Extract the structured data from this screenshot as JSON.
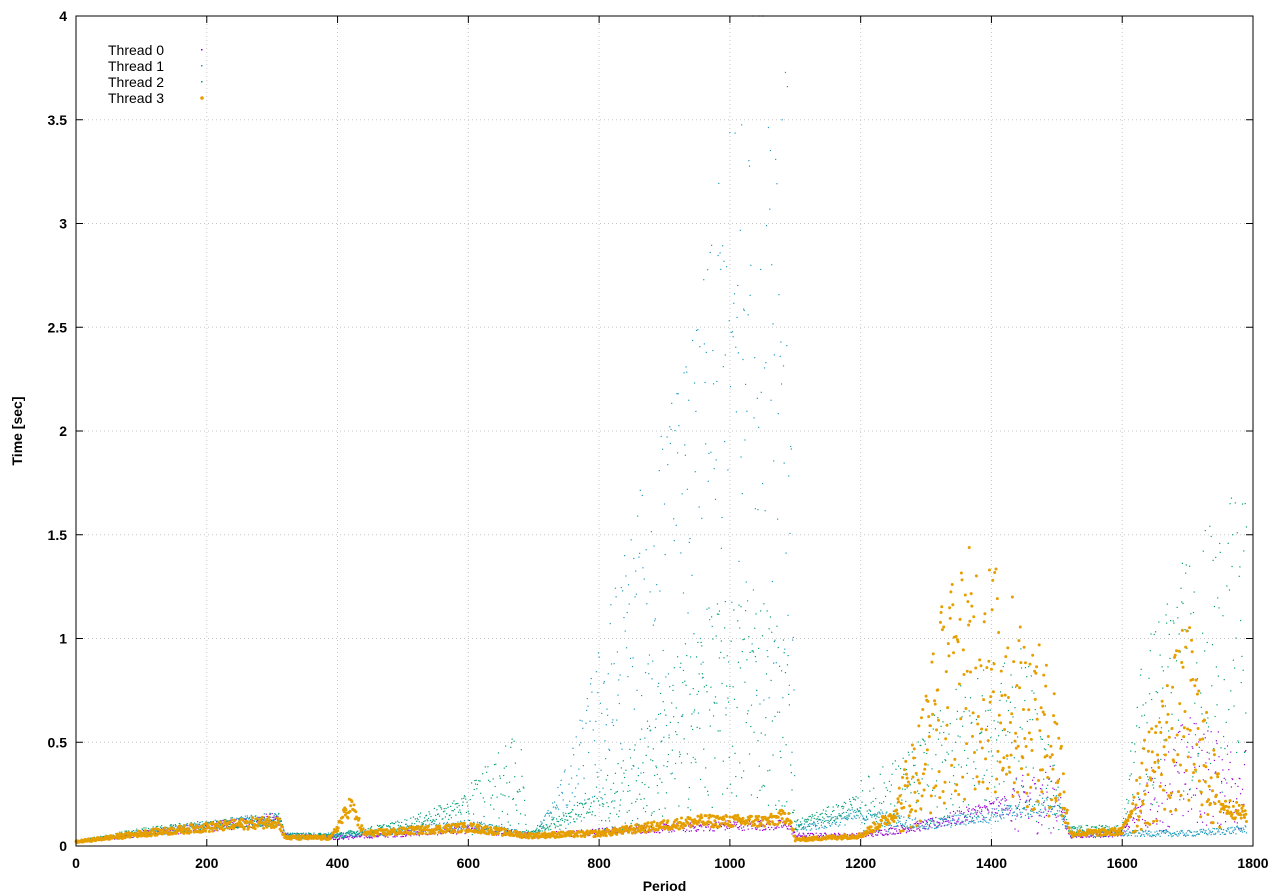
{
  "chart_data": {
    "type": "scatter",
    "title": "",
    "xlabel": "Period",
    "ylabel": "Time [sec]",
    "xlim": [
      0,
      1800
    ],
    "ylim": [
      0,
      4
    ],
    "x_ticks": [
      0,
      200,
      400,
      600,
      800,
      1000,
      1200,
      1400,
      1600,
      1800
    ],
    "y_ticks": [
      0,
      0.5,
      1,
      1.5,
      2,
      2.5,
      3,
      3.5,
      4
    ],
    "y_tick_labels": [
      "0",
      "0.5",
      "1",
      "1.5",
      "2",
      "2.5",
      "3",
      "3.5",
      "4"
    ],
    "grid": true,
    "legend_position": "top-left",
    "series": [
      {
        "name": "Thread 0",
        "color": "#9400d3",
        "marker": "dot",
        "profile": [
          [
            0,
            0.02
          ],
          [
            100,
            0.06
          ],
          [
            200,
            0.09
          ],
          [
            310,
            0.13
          ],
          [
            320,
            0.05
          ],
          [
            400,
            0.04
          ],
          [
            600,
            0.08
          ],
          [
            700,
            0.05
          ],
          [
            800,
            0.07
          ],
          [
            1000,
            0.1
          ],
          [
            1090,
            0.1
          ],
          [
            1100,
            0.05
          ],
          [
            1200,
            0.05
          ],
          [
            1300,
            0.1
          ],
          [
            1400,
            0.18
          ],
          [
            1500,
            0.25
          ],
          [
            1520,
            0.05
          ],
          [
            1600,
            0.06
          ],
          [
            1630,
            0.2
          ],
          [
            1700,
            0.4
          ],
          [
            1790,
            0.3
          ]
        ]
      },
      {
        "name": "Thread 1",
        "color": "#1f9bbf",
        "marker": "dot",
        "profile": [
          [
            0,
            0.02
          ],
          [
            100,
            0.06
          ],
          [
            200,
            0.1
          ],
          [
            310,
            0.13
          ],
          [
            320,
            0.05
          ],
          [
            400,
            0.05
          ],
          [
            600,
            0.1
          ],
          [
            700,
            0.05
          ],
          [
            760,
            0.3
          ],
          [
            850,
            1.0
          ],
          [
            950,
            1.6
          ],
          [
            1000,
            2.2
          ],
          [
            1060,
            2.8
          ],
          [
            1090,
            2.3
          ],
          [
            1100,
            0.08
          ],
          [
            1200,
            0.15
          ],
          [
            1300,
            0.1
          ],
          [
            1400,
            0.15
          ],
          [
            1500,
            0.2
          ],
          [
            1520,
            0.06
          ],
          [
            1600,
            0.06
          ],
          [
            1700,
            0.06
          ],
          [
            1790,
            0.08
          ]
        ]
      },
      {
        "name": "Thread 2",
        "color": "#009e73",
        "marker": "dot",
        "profile": [
          [
            0,
            0.02
          ],
          [
            100,
            0.07
          ],
          [
            200,
            0.1
          ],
          [
            310,
            0.13
          ],
          [
            320,
            0.05
          ],
          [
            400,
            0.05
          ],
          [
            500,
            0.1
          ],
          [
            600,
            0.2
          ],
          [
            680,
            0.35
          ],
          [
            690,
            0.06
          ],
          [
            760,
            0.15
          ],
          [
            850,
            0.3
          ],
          [
            950,
            0.7
          ],
          [
            1050,
            0.8
          ],
          [
            1090,
            0.6
          ],
          [
            1100,
            0.1
          ],
          [
            1200,
            0.2
          ],
          [
            1280,
            0.3
          ],
          [
            1350,
            0.5
          ],
          [
            1450,
            0.6
          ],
          [
            1520,
            0.08
          ],
          [
            1600,
            0.08
          ],
          [
            1630,
            0.6
          ],
          [
            1700,
            0.9
          ],
          [
            1790,
            1.1
          ]
        ]
      },
      {
        "name": "Thread 3",
        "color": "#e69f00",
        "marker": "circle",
        "profile": [
          [
            0,
            0.02
          ],
          [
            100,
            0.06
          ],
          [
            200,
            0.09
          ],
          [
            310,
            0.12
          ],
          [
            320,
            0.04
          ],
          [
            390,
            0.04
          ],
          [
            420,
            0.2
          ],
          [
            440,
            0.06
          ],
          [
            600,
            0.09
          ],
          [
            690,
            0.05
          ],
          [
            800,
            0.06
          ],
          [
            950,
            0.12
          ],
          [
            1060,
            0.12
          ],
          [
            1090,
            0.15
          ],
          [
            1100,
            0.03
          ],
          [
            1200,
            0.05
          ],
          [
            1250,
            0.15
          ],
          [
            1290,
            0.4
          ],
          [
            1330,
            0.8
          ],
          [
            1380,
            0.95
          ],
          [
            1450,
            0.7
          ],
          [
            1500,
            0.5
          ],
          [
            1520,
            0.06
          ],
          [
            1600,
            0.07
          ],
          [
            1630,
            0.3
          ],
          [
            1700,
            0.7
          ],
          [
            1750,
            0.2
          ],
          [
            1790,
            0.15
          ]
        ]
      }
    ]
  }
}
